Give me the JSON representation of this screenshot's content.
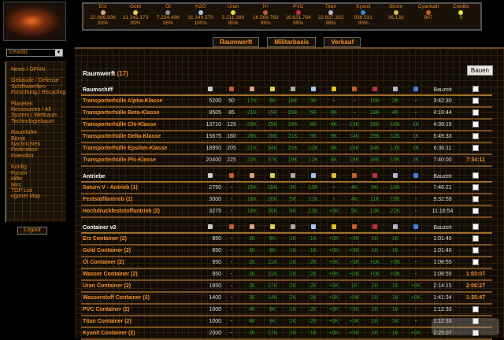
{
  "realm": {
    "selected": "Icewold"
  },
  "sidebar": {
    "groups": [
      [
        "News / OFNN"
      ],
      [
        "Gebäude / Defense",
        "Schiffswerften",
        "Forschung / Recycling"
      ],
      [
        "Planeten",
        "Ressourcen / All",
        "System / Weltraum",
        "Technologiebaum"
      ],
      [
        "Raumfahrt",
        "Börse",
        "Nachrichten",
        "Federation",
        "Friendlist"
      ],
      [
        "Konfig",
        "Forum",
        "Hilfe",
        "Mirc",
        "TOP List",
        "ogonet Map"
      ]
    ],
    "logout": "Logout"
  },
  "resources": [
    {
      "name": "Erz",
      "amount": "22.066.836",
      "pct": "93%",
      "color": "#e0a080"
    },
    {
      "name": "Gold",
      "amount": "31.342.173",
      "pct": "99%",
      "color": "#e0d040"
    },
    {
      "name": "Öl",
      "amount": "7.234.496",
      "pct": "96%",
      "color": "#909090"
    },
    {
      "name": "H2O",
      "amount": "31.340.570",
      "pct": "100%",
      "color": "#a0c8f0"
    },
    {
      "name": "Uran",
      "amount": "5.211.383",
      "pct": "95%",
      "color": "#e0e020"
    },
    {
      "name": "H²",
      "amount": "16.569.763",
      "pct": "99%",
      "color": "#c06030"
    },
    {
      "name": "PVC",
      "amount": "16.631.784",
      "pct": "99%",
      "color": "#c03040"
    },
    {
      "name": "Titan",
      "amount": "22.837.332",
      "pct": "98%",
      "color": "#b0b8d0"
    },
    {
      "name": "Kyanit",
      "amount": "936.531",
      "pct": "90%",
      "color": "#4080e0"
    },
    {
      "name": "Strom",
      "amount": "36.133",
      "pct": "",
      "color": "#e0c040"
    },
    {
      "name": "Cyankalit",
      "amount": "997",
      "pct": "",
      "color": "#d06020"
    },
    {
      "name": "Credits",
      "amount": "0",
      "pct": "",
      "color": "#e0e030"
    }
  ],
  "tabs": [
    "Raumwerft",
    "Militarbasis",
    "Verkauf"
  ],
  "page": {
    "title": "Raumwerft",
    "count": "(17)",
    "build_button": "Bauen"
  },
  "columns": {
    "icons": [
      "points-icon",
      "crew-icon",
      "erz-icon",
      "gold-icon",
      "oel-icon",
      "h2o-icon",
      "uran-icon",
      "h2-icon",
      "pvc-icon",
      "titan-icon",
      "kyanit-icon"
    ],
    "icon_colors": [
      "#ccc",
      "#c06030",
      "#e0a080",
      "#e0d040",
      "#aaa",
      "#a0c8f0",
      "#e0c020",
      "#c06030",
      "#c03040",
      "#b0b8d0",
      "#4080e0"
    ],
    "buildtime": "Bauzeit"
  },
  "sections": [
    {
      "name": "Raumschiff",
      "rows": [
        [
          "Transporterhülle Alpha-Klasse",
          "5200",
          "50",
          "17K",
          "9K",
          "18K",
          "3K",
          "-",
          "-",
          "10K",
          "2K",
          "-",
          "3:42:30",
          ""
        ],
        [
          "Transporterhülle Beta-Klasse",
          "8505",
          "85",
          "21K",
          "15K",
          "29K",
          "5K",
          "8K",
          "-",
          "18K",
          "4K",
          "-",
          "4:10:44",
          ""
        ],
        [
          "Transporterhülle Chi-Klasse",
          "13710",
          "125",
          "25K",
          "25K",
          "29K",
          "8K",
          "8K",
          "13K",
          "26K",
          "10K",
          "1K",
          "4:39:15",
          ""
        ],
        [
          "Transporterhülle Delta-Klasse",
          "15675",
          "160",
          "28K",
          "28K",
          "21K",
          "9K",
          "9K",
          "14K",
          "29K",
          "12K",
          "1K",
          "5:49:33",
          ""
        ],
        [
          "Transporterhülle Epsilon-Klasse",
          "18950",
          "205",
          "21K",
          "34K",
          "25K",
          "11K",
          "9K",
          "16K",
          "34K",
          "13K",
          "2K",
          "6:36:11",
          ""
        ],
        [
          "Transporterhülle Phi-Klasse",
          "20400",
          "225",
          "22K",
          "37K",
          "18K",
          "12K",
          "8K",
          "18K",
          "38K",
          "15K",
          "2K",
          "7:40:00",
          "7:34:11"
        ]
      ]
    },
    {
      "name": "Antriebe",
      "rows": [
        [
          "Saturn V - Antrieb (1)",
          "2750",
          "-",
          "15K",
          "15K",
          "3K",
          "10K",
          "-",
          "4K",
          "9K",
          "10K",
          "-",
          "7:46:21",
          ""
        ],
        [
          "Feststoffantrieb (1)",
          "3000",
          "-",
          "16K",
          "26K",
          "5K",
          "11K",
          "-",
          "4K",
          "11K",
          "19K",
          "-",
          "9:32:59",
          ""
        ],
        [
          "Hochdruckfeststoffantrieb (2)",
          "3275",
          "-",
          "18K",
          "36K",
          "6K",
          "13K",
          "+0K",
          "5K",
          "13K",
          "22K",
          "-",
          "11:16:54",
          ""
        ]
      ]
    },
    {
      "name": "Container v2",
      "rows": [
        [
          "Erz Container (2)",
          "850",
          "-",
          "3K",
          "8K",
          "1K",
          "1K",
          "+0K",
          "+0K",
          "1K",
          "1K",
          "-",
          "1:01:40",
          ""
        ],
        [
          "Gold Container (2)",
          "850",
          "-",
          "3K",
          "9K",
          "1K",
          "1K",
          "+0K",
          "+0K",
          "1K",
          "1K",
          "-",
          "1:01:40",
          ""
        ],
        [
          "Öl Container (2)",
          "950",
          "-",
          "2K",
          "11K",
          "1K",
          "2K",
          "+0K",
          "+0K",
          "+0K",
          "+0K",
          "-",
          "1:08:55",
          ""
        ],
        [
          "Wasser Container (2)",
          "950",
          "-",
          "2K",
          "11K",
          "1K",
          "2K",
          "+0K",
          "+0K",
          "+0K",
          "+0K",
          "-",
          "1:08:55",
          "1:03:07"
        ],
        [
          "Uran Container (2)",
          "1850",
          "-",
          "2K",
          "17K",
          "2K",
          "2K",
          "+0K",
          "1K",
          "1K",
          "1K",
          "+0K",
          "2:14:15",
          "2:08:27"
        ],
        [
          "Wasserstoff Container (2)",
          "1400",
          "-",
          "3K",
          "14K",
          "2K",
          "2K",
          "+0K",
          "+0K",
          "1K",
          "1K",
          "+0K",
          "1:41:34",
          "1:35:47"
        ],
        [
          "PVC Container (2)",
          "1000",
          "-",
          "4K",
          "8K",
          "1K",
          "2K",
          "+0K",
          "+0K",
          "1K",
          "1K",
          "-",
          "1:12:33",
          ""
        ],
        [
          "Titan Container (2)",
          "1000",
          "-",
          "4K",
          "9K",
          "1K",
          "2K",
          "+0K",
          "+0K",
          "1K",
          "1K",
          "-",
          "1:12:33",
          ""
        ],
        [
          "Kyanit Container (2)",
          "2000",
          "-",
          "2K",
          "17K",
          "2K",
          "1K",
          "+0K",
          "+0K",
          "1K",
          "1K",
          "+0K",
          "2:25:07",
          ""
        ]
      ]
    }
  ],
  "watermark": "G-news"
}
